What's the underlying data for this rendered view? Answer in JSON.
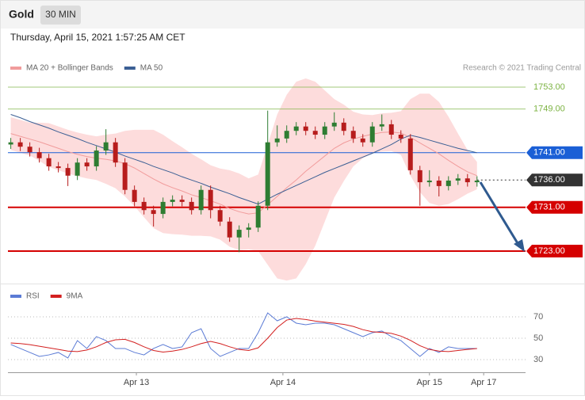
{
  "header": {
    "symbol": "Gold",
    "interval": "30 MIN",
    "timestamp": "Thursday, April 15, 2021 1:57:25 AM CET"
  },
  "chart_data": [
    {
      "type": "candlestick",
      "credit": "Research © 2021 Trading Central",
      "xlim": [
        -0.3,
        54.1
      ],
      "ylim": [
        1717,
        1755.5
      ],
      "yticks": [
        {
          "value": 1753,
          "label": "1753.00"
        },
        {
          "value": 1749,
          "label": "1749.00"
        },
        {
          "value": 1741,
          "label": "1741.00"
        },
        {
          "value": 1736,
          "label": "1736.00"
        },
        {
          "value": 1731,
          "label": "1731.00"
        },
        {
          "value": 1723,
          "label": "1723.00"
        }
      ],
      "level_colors": [
        "#7cb342",
        "#7cb342",
        "#1a5fd6",
        "#333333",
        "#d50000",
        "#d50000"
      ],
      "level_boxed": [
        false,
        false,
        true,
        true,
        true,
        true
      ],
      "level_dashed": [
        false,
        false,
        false,
        true,
        false,
        false
      ],
      "level_widths": [
        1,
        1,
        1,
        1,
        2,
        2
      ],
      "candles": {
        "up_color": "#2e7d32",
        "down_color": "#b71c1c",
        "open": [
          1742.5,
          1742.9,
          1742.1,
          1741.1,
          1740.0,
          1738.5,
          1738.2,
          1736.8,
          1739.2,
          1738.5,
          1741.4,
          1742.9,
          1739.2,
          1734.2,
          1732.0,
          1730.5,
          1729.8,
          1732.0,
          1732.4,
          1732.0,
          1730.5,
          1734.2,
          1730.5,
          1728.4,
          1725.5,
          1726.9,
          1727.3,
          1731.3,
          1742.9,
          1743.6,
          1745.0,
          1745.8,
          1745.0,
          1744.3,
          1745.8,
          1746.5,
          1745.0,
          1743.6,
          1742.9,
          1745.8,
          1746.2,
          1744.3,
          1743.6,
          1737.8,
          1735.6,
          1735.9,
          1734.9,
          1735.9,
          1736.3,
          1735.6
        ],
        "high": [
          1743.7,
          1743.7,
          1742.9,
          1741.9,
          1740.8,
          1739.3,
          1739.0,
          1740.0,
          1740.0,
          1742.2,
          1745.3,
          1743.7,
          1740.0,
          1735.0,
          1732.8,
          1731.3,
          1732.8,
          1733.2,
          1733.2,
          1732.8,
          1735.0,
          1735.0,
          1731.3,
          1729.2,
          1727.7,
          1728.1,
          1732.1,
          1748.7,
          1746.0,
          1746.0,
          1746.6,
          1746.6,
          1745.8,
          1746.6,
          1748.4,
          1747.3,
          1745.8,
          1744.4,
          1746.6,
          1748.0,
          1747.0,
          1745.1,
          1744.4,
          1738.6,
          1737.8,
          1736.7,
          1736.7,
          1737.1,
          1737.1,
          1736.7
        ],
        "low": [
          1741.7,
          1741.3,
          1740.3,
          1739.2,
          1737.7,
          1737.4,
          1734.9,
          1736.0,
          1737.7,
          1737.7,
          1740.6,
          1738.4,
          1733.4,
          1731.2,
          1729.7,
          1727.5,
          1729.0,
          1731.2,
          1731.2,
          1729.7,
          1729.7,
          1729.0,
          1727.6,
          1724.7,
          1722.8,
          1725.5,
          1726.5,
          1730.5,
          1742.1,
          1742.8,
          1744.2,
          1744.2,
          1743.5,
          1743.5,
          1745.0,
          1744.2,
          1742.8,
          1742.1,
          1742.1,
          1745.0,
          1743.5,
          1742.8,
          1737.0,
          1731.3,
          1734.8,
          1733.0,
          1734.1,
          1735.1,
          1734.8,
          1734.8
        ],
        "close": [
          1742.9,
          1742.1,
          1741.1,
          1740.0,
          1738.5,
          1738.2,
          1736.8,
          1739.2,
          1738.5,
          1741.4,
          1742.9,
          1739.2,
          1734.2,
          1732.0,
          1730.5,
          1729.8,
          1732.0,
          1732.4,
          1732.0,
          1730.5,
          1734.2,
          1730.5,
          1728.4,
          1725.5,
          1726.9,
          1727.3,
          1731.3,
          1742.9,
          1743.6,
          1745.0,
          1745.8,
          1745.0,
          1744.3,
          1745.8,
          1746.5,
          1745.0,
          1743.6,
          1742.9,
          1745.8,
          1746.2,
          1744.3,
          1743.6,
          1737.8,
          1735.6,
          1735.9,
          1734.9,
          1735.9,
          1736.3,
          1735.6,
          1735.9
        ]
      },
      "series": [
        {
          "name": "MA 20 + Bollinger Bands",
          "color": "#f19c9c",
          "band_color": "#fddcdc",
          "values": [
            1744.5,
            1744.0,
            1743.5,
            1743.0,
            1742.4,
            1741.8,
            1741.2,
            1740.7,
            1740.3,
            1740.0,
            1739.8,
            1739.5,
            1739.0,
            1738.2,
            1737.2,
            1736.2,
            1735.3,
            1734.6,
            1734.0,
            1733.3,
            1732.8,
            1732.2,
            1731.6,
            1730.8,
            1730.2,
            1729.8,
            1730.0,
            1731.5,
            1733.0,
            1734.6,
            1736.0,
            1737.6,
            1739.0,
            1740.4,
            1741.8,
            1742.8,
            1743.5,
            1744.0,
            1744.4,
            1744.7,
            1744.8,
            1744.6,
            1743.8,
            1742.8,
            1741.8,
            1740.8,
            1739.6,
            1738.5,
            1737.5,
            1736.8
          ],
          "upper": [
            1747.5,
            1747.0,
            1746.5,
            1746.5,
            1746.4,
            1745.8,
            1745.2,
            1744.7,
            1744.3,
            1744.0,
            1744.3,
            1744.5,
            1745.0,
            1745.2,
            1745.2,
            1745.2,
            1744.3,
            1743.1,
            1742.0,
            1740.8,
            1739.8,
            1738.7,
            1738.1,
            1737.8,
            1737.2,
            1736.3,
            1737.0,
            1742.5,
            1748.0,
            1751.6,
            1754.0,
            1754.6,
            1754.0,
            1752.4,
            1750.8,
            1749.8,
            1748.5,
            1748.0,
            1747.9,
            1748.2,
            1748.3,
            1748.6,
            1750.8,
            1751.8,
            1751.8,
            1750.3,
            1747.6,
            1744.5,
            1741.5,
            1739.3
          ],
          "lower": [
            1741.5,
            1741.0,
            1740.5,
            1739.5,
            1738.4,
            1737.8,
            1737.2,
            1736.7,
            1736.3,
            1736.0,
            1735.3,
            1734.5,
            1733.0,
            1731.2,
            1729.2,
            1727.2,
            1726.3,
            1726.1,
            1726.0,
            1725.8,
            1725.8,
            1725.7,
            1725.1,
            1723.8,
            1723.2,
            1723.3,
            1723.0,
            1720.5,
            1718.0,
            1717.6,
            1718.0,
            1720.6,
            1724.0,
            1728.4,
            1732.8,
            1735.8,
            1738.5,
            1740.0,
            1740.9,
            1741.2,
            1741.3,
            1740.6,
            1736.8,
            1733.8,
            1731.8,
            1731.3,
            1731.6,
            1732.5,
            1733.5,
            1734.3
          ]
        },
        {
          "name": "MA 50",
          "color": "#3b5f94",
          "values": [
            1748.0,
            1747.4,
            1746.7,
            1746.1,
            1745.5,
            1744.8,
            1744.2,
            1743.6,
            1742.9,
            1742.3,
            1741.7,
            1741.1,
            1740.4,
            1739.8,
            1739.2,
            1738.5,
            1737.9,
            1737.3,
            1736.6,
            1736.0,
            1735.4,
            1734.7,
            1734.1,
            1733.5,
            1732.8,
            1732.2,
            1731.6,
            1732.5,
            1733.4,
            1734.2,
            1735.0,
            1735.8,
            1736.6,
            1737.4,
            1738.1,
            1738.8,
            1739.5,
            1740.2,
            1740.9,
            1741.7,
            1742.5,
            1743.5,
            1744.2,
            1743.8,
            1743.3,
            1742.8,
            1742.3,
            1741.8,
            1741.4,
            1741.0
          ]
        }
      ]
    },
    {
      "type": "line",
      "xlim": [
        -0.3,
        54.1
      ],
      "ylim": [
        22,
        85
      ],
      "yticks": [
        70,
        50,
        30
      ],
      "grid": true,
      "xticks": [
        {
          "value": 13.2,
          "label": "Apr 13"
        },
        {
          "value": 28.6,
          "label": "Apr 14"
        },
        {
          "value": 44,
          "label": "Apr 15"
        },
        {
          "value": 49.7,
          "label": "Apr 17"
        }
      ],
      "series": [
        {
          "name": "RSI",
          "color": "#5b7bd5",
          "values": [
            44.1,
            40.4,
            36.7,
            33.0,
            34.4,
            36.7,
            31.5,
            47.8,
            40.4,
            51.5,
            47.8,
            40.4,
            40.4,
            36.7,
            34.4,
            40.4,
            44.1,
            40.4,
            41.9,
            55.2,
            58.9,
            40.4,
            33.0,
            36.7,
            40.4,
            40.4,
            55.2,
            73.7,
            66.3,
            70.0,
            64.1,
            62.6,
            64.1,
            64.1,
            62.6,
            58.9,
            55.2,
            51.5,
            55.2,
            56.7,
            51.5,
            47.8,
            40.4,
            33.0,
            40.4,
            36.7,
            41.9,
            40.4,
            40.4,
            40.4
          ]
        },
        {
          "name": "9MA",
          "color": "#d32020",
          "values": [
            45.6,
            45.0,
            44.0,
            42.5,
            41.0,
            39.5,
            38.0,
            37.5,
            39.0,
            42.0,
            46.0,
            48.5,
            49.0,
            46.0,
            42.0,
            38.5,
            37.0,
            38.0,
            39.5,
            42.0,
            45.0,
            47.0,
            45.0,
            42.0,
            39.5,
            38.5,
            41.0,
            50.0,
            60.0,
            67.0,
            68.5,
            67.5,
            66.0,
            65.0,
            64.0,
            63.0,
            61.0,
            58.0,
            56.0,
            55.5,
            54.5,
            52.0,
            48.0,
            43.0,
            39.5,
            38.0,
            37.5,
            38.5,
            39.5,
            40.4
          ]
        }
      ]
    }
  ]
}
